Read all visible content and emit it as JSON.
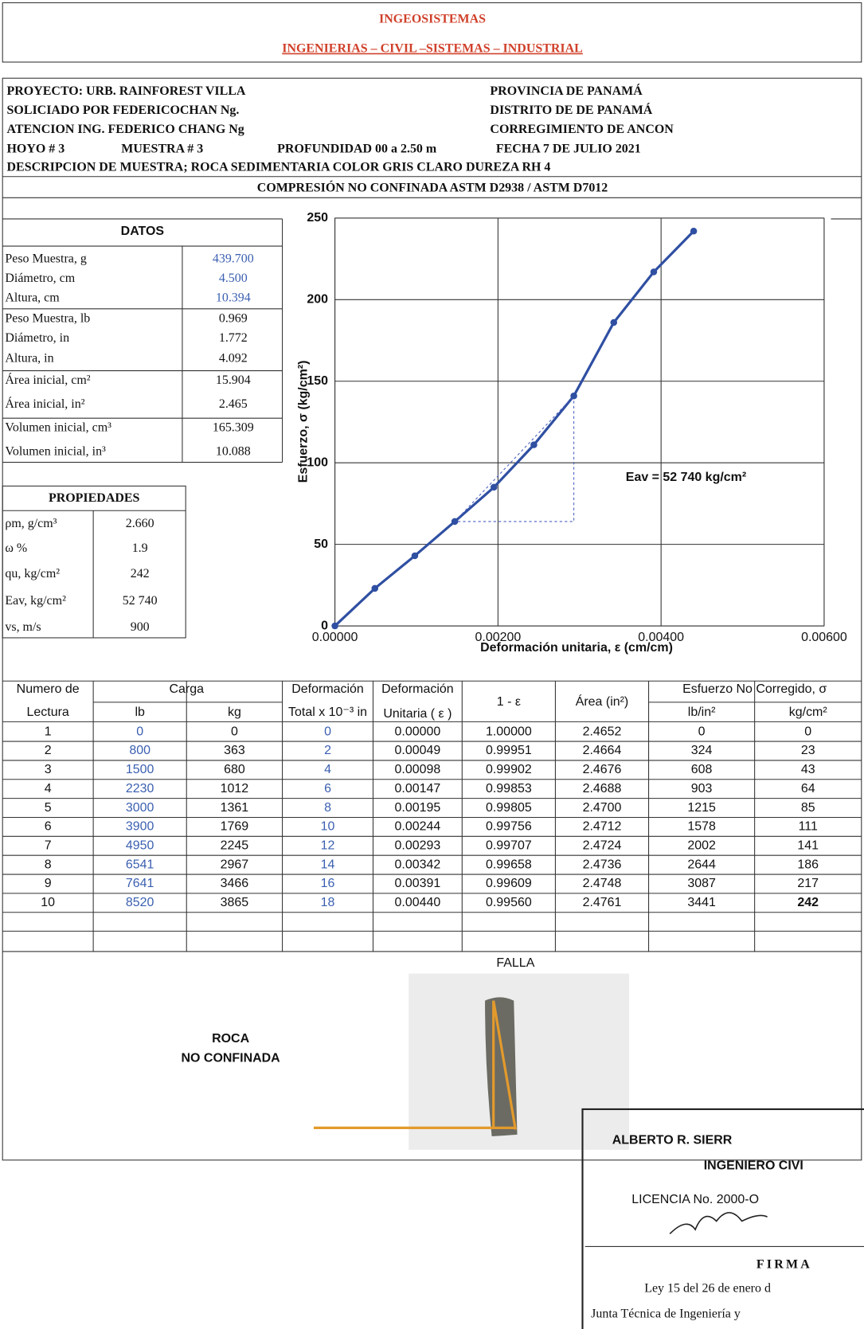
{
  "header": {
    "title": "INGEOSISTEMAS",
    "subtitle": "INGENIERIAS – CIVIL –SISTEMAS – INDUSTRIAL"
  },
  "project": {
    "left": [
      "PROYECTO: URB. RAINFOREST VILLA",
      "SOLICIADO POR FEDERICOCHAN Ng.",
      "ATENCION ING. FEDERICO CHANG Ng"
    ],
    "right": [
      "PROVINCIA DE PANAMÁ",
      "DISTRITO DE DE PANAMÁ",
      "CORREGIMIENTO DE ANCON"
    ],
    "sample_row": [
      "HOYO # 3",
      "MUESTRA # 3",
      "PROFUNDIDAD 00 a 2.50 m",
      "FECHA 7 DE JULIO 2021"
    ],
    "description": "DESCRIPCION DE MUESTRA; ROCA SEDIMENTARIA COLOR GRIS CLARO DUREZA RH 4"
  },
  "section_title": "COMPRESIÓN NO CONFINADA ASTM D2938 / ASTM D7012",
  "datos": {
    "title": "DATOS",
    "rows": [
      [
        "Peso Muestra, g",
        "439.700"
      ],
      [
        "Diámetro, cm",
        "4.500"
      ],
      [
        "Altura, cm",
        "10.394"
      ],
      [
        "Peso Muestra, lb",
        "0.969"
      ],
      [
        "Diámetro, in",
        "1.772"
      ],
      [
        "Altura, in",
        "4.092"
      ],
      [
        "Área inicial, cm²",
        "15.904"
      ],
      [
        "Área inicial, in²",
        "2.465"
      ],
      [
        "Volumen inicial, cm³",
        "165.309"
      ],
      [
        "Volumen inicial, in³",
        "10.088"
      ]
    ]
  },
  "propiedades": {
    "title": "PROPIEDADES",
    "rows": [
      [
        "ρm, g/cm³",
        "2.660"
      ],
      [
        "ω %",
        "1.9"
      ],
      [
        "qu, kg/cm²",
        "242"
      ],
      [
        "Eav, kg/cm²",
        "52 740"
      ],
      [
        "vs, m/s",
        "900"
      ]
    ]
  },
  "chart_data": {
    "type": "line",
    "y_label": "Esfuerzo, σ (kg/cm²)",
    "x_label": "Deformación unitaria, ε (cm/cm)",
    "annotation": "Eav = 52 740 kg/cm²",
    "x": [
      0,
      0.00049,
      0.00098,
      0.00147,
      0.00195,
      0.00244,
      0.00293,
      0.00342,
      0.00391,
      0.0044
    ],
    "values": [
      0,
      23,
      43,
      64,
      85,
      111,
      141,
      186,
      217,
      242
    ],
    "color": "#2f4fa2",
    "xlim": [
      0,
      0.006
    ],
    "xticks": [
      {
        "value": 0,
        "label": "0.00000"
      },
      {
        "value": 0.002,
        "label": "0.00200"
      },
      {
        "value": 0.004,
        "label": "0.00400"
      },
      {
        "value": 0.006,
        "label": "0.00600"
      }
    ],
    "ylim": [
      0,
      250
    ],
    "yticks": [
      0,
      50,
      100,
      150,
      200,
      250
    ],
    "grid": true
  },
  "table": {
    "headers": [
      "Numero de",
      "Lectura",
      "Carga",
      "lb",
      "kg",
      "Deformación",
      "Total x 10⁻³ in",
      "Deformación",
      "Unitaria ( ε )",
      "1 - ε",
      "Área (in²)",
      "Esfuerzo No Corregido, σ",
      "lb/in²",
      "kg/cm²"
    ],
    "rows": [
      [
        "1",
        "0",
        "0",
        "0",
        "0.00000",
        "1.00000",
        "2.4652",
        "0",
        "0"
      ],
      [
        "2",
        "800",
        "363",
        "2",
        "0.00049",
        "0.99951",
        "2.4664",
        "324",
        "23"
      ],
      [
        "3",
        "1500",
        "680",
        "4",
        "0.00098",
        "0.99902",
        "2.4676",
        "608",
        "43"
      ],
      [
        "4",
        "2230",
        "1012",
        "6",
        "0.00147",
        "0.99853",
        "2.4688",
        "903",
        "64"
      ],
      [
        "5",
        "3000",
        "1361",
        "8",
        "0.00195",
        "0.99805",
        "2.4700",
        "1215",
        "85"
      ],
      [
        "6",
        "3900",
        "1769",
        "10",
        "0.00244",
        "0.99756",
        "2.4712",
        "1578",
        "111"
      ],
      [
        "7",
        "4950",
        "2245",
        "12",
        "0.00293",
        "0.99707",
        "2.4724",
        "2002",
        "141"
      ],
      [
        "8",
        "6541",
        "2967",
        "14",
        "0.00342",
        "0.99658",
        "2.4736",
        "2644",
        "186"
      ],
      [
        "9",
        "7641",
        "3466",
        "16",
        "0.00391",
        "0.99609",
        "2.4748",
        "3087",
        "217"
      ],
      [
        "10",
        "8520",
        "3865",
        "18",
        "0.00440",
        "0.99560",
        "2.4761",
        "3441",
        "242"
      ]
    ]
  },
  "failure": {
    "title": "FALLA",
    "label": [
      "ROCA",
      "NO CONFINADA"
    ]
  },
  "stamp": {
    "name": "ALBERTO R. SIERR",
    "profession": "INGENIERO CIVI",
    "license": "LICENCIA No. 2000-O",
    "sign": "FIRMA",
    "law": [
      "Ley 15 del 26 de enero d",
      "Junta Técnica de Ingeniería y"
    ]
  }
}
